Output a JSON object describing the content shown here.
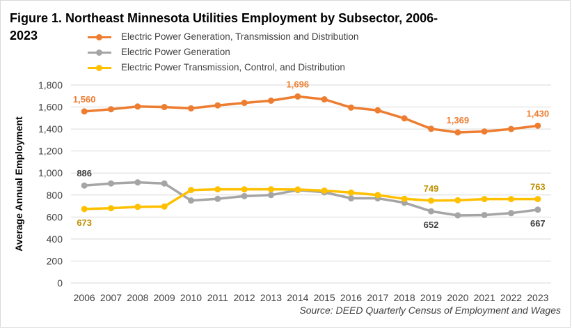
{
  "chart_data": {
    "type": "line",
    "title": "Figure 1. Northeast Minnesota Utilities Employment by Subsector, 2006-2023",
    "xlabel": "",
    "ylabel": "Average Annual Employment",
    "ylim": [
      0,
      1800
    ],
    "ytick_step": 200,
    "x": [
      "2006",
      "2007",
      "2008",
      "2009",
      "2010",
      "2011",
      "2012",
      "2013",
      "2014",
      "2015",
      "2016",
      "2017",
      "2018",
      "2019",
      "2020",
      "2021",
      "2022",
      "2023"
    ],
    "series": [
      {
        "name": "Electric Power Generation, Transmission and Distribution",
        "color": "#ed7d31",
        "label_color": "#ed7d31",
        "values": [
          1560,
          1580,
          1605,
          1600,
          1588,
          1615,
          1638,
          1658,
          1696,
          1670,
          1595,
          1570,
          1497,
          1402,
          1369,
          1378,
          1400,
          1430
        ],
        "labels": [
          {
            "index": 0,
            "text": "1,560",
            "pos": "above"
          },
          {
            "index": 8,
            "text": "1,696",
            "pos": "above"
          },
          {
            "index": 14,
            "text": "1,369",
            "pos": "above"
          },
          {
            "index": 17,
            "text": "1,430",
            "pos": "above"
          }
        ]
      },
      {
        "name": "Electric Power Generation",
        "color": "#a5a5a5",
        "label_color": "#404040",
        "values": [
          886,
          905,
          915,
          905,
          750,
          765,
          790,
          800,
          845,
          825,
          770,
          770,
          730,
          652,
          615,
          618,
          635,
          667
        ],
        "labels": [
          {
            "index": 0,
            "text": "886",
            "pos": "above"
          },
          {
            "index": 13,
            "text": "652",
            "pos": "below"
          },
          {
            "index": 17,
            "text": "667",
            "pos": "below"
          }
        ]
      },
      {
        "name": "Electric Power Transmission, Control, and Distribution",
        "color": "#ffc000",
        "label_color": "#bf9000",
        "values": [
          673,
          680,
          692,
          695,
          845,
          852,
          852,
          852,
          850,
          840,
          822,
          800,
          765,
          749,
          752,
          763,
          763,
          763
        ],
        "labels": [
          {
            "index": 0,
            "text": "673",
            "pos": "below"
          },
          {
            "index": 13,
            "text": "749",
            "pos": "above"
          },
          {
            "index": 17,
            "text": "763",
            "pos": "above"
          }
        ]
      }
    ]
  },
  "source": "Source: DEED Quarterly Census of Employment and Wages"
}
